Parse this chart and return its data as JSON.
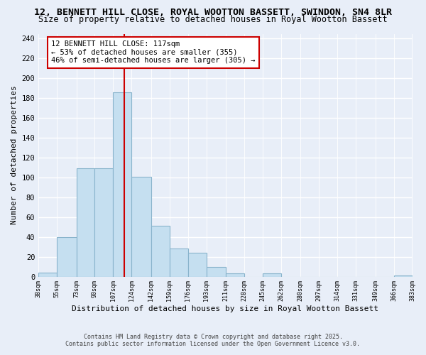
{
  "title1": "12, BENNETT HILL CLOSE, ROYAL WOOTTON BASSETT, SWINDON, SN4 8LR",
  "title2": "Size of property relative to detached houses in Royal Wootton Bassett",
  "xlabel": "Distribution of detached houses by size in Royal Wootton Bassett",
  "ylabel": "Number of detached properties",
  "bin_edges": [
    38,
    55,
    73,
    90,
    107,
    124,
    142,
    159,
    176,
    193,
    211,
    228,
    245,
    262,
    280,
    297,
    314,
    331,
    349,
    366,
    383
  ],
  "bin_counts": [
    4,
    40,
    109,
    109,
    186,
    101,
    51,
    28,
    24,
    10,
    3,
    0,
    3,
    0,
    0,
    0,
    0,
    0,
    0,
    1
  ],
  "bar_color": "#c5dff0",
  "bar_edge_color": "#8ab4cc",
  "property_size": 117,
  "vline_color": "#cc0000",
  "annotation_line1": "12 BENNETT HILL CLOSE: 117sqm",
  "annotation_line2": "← 53% of detached houses are smaller (355)",
  "annotation_line3": "46% of semi-detached houses are larger (305) →",
  "annotation_box_color": "white",
  "annotation_box_edge": "#cc0000",
  "ylim": [
    0,
    245
  ],
  "yticks": [
    0,
    20,
    40,
    60,
    80,
    100,
    120,
    140,
    160,
    180,
    200,
    220,
    240
  ],
  "footnote1": "Contains HM Land Registry data © Crown copyright and database right 2025.",
  "footnote2": "Contains public sector information licensed under the Open Government Licence v3.0.",
  "background_color": "#e8eef8",
  "plot_bg_color": "#e8eef8",
  "grid_color": "#ffffff",
  "title1_fontsize": 9.5,
  "title2_fontsize": 8.5
}
